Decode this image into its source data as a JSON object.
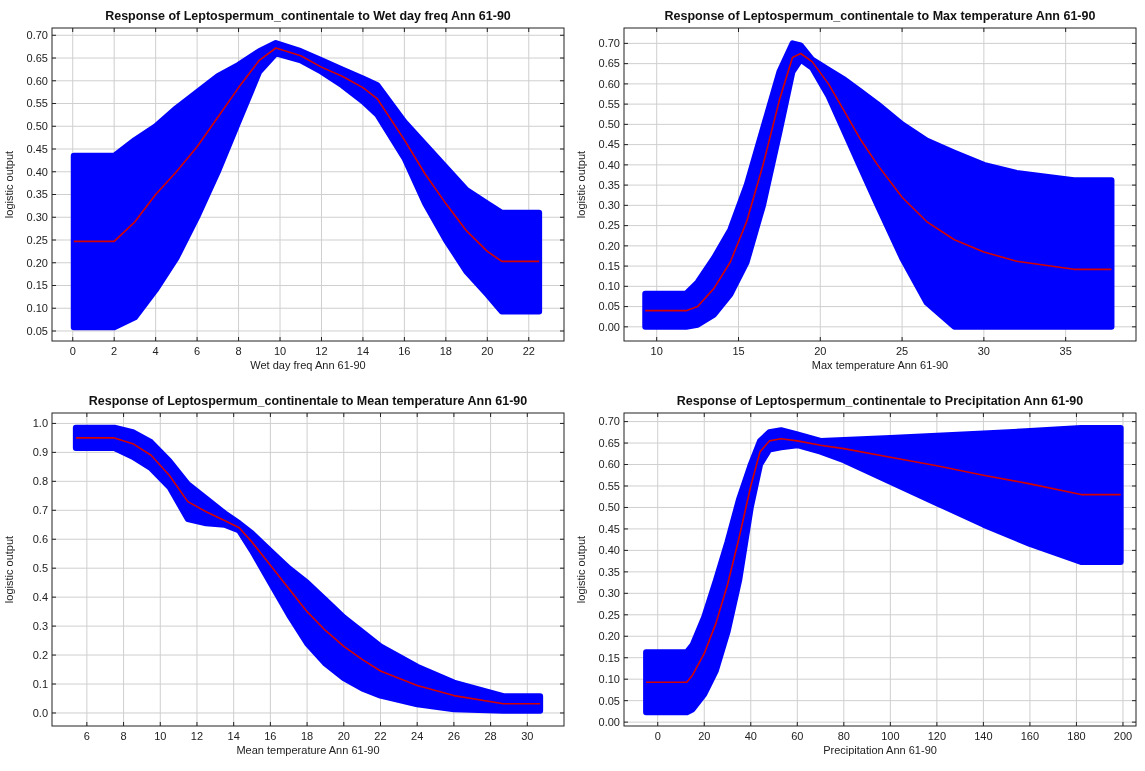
{
  "chart_data": [
    {
      "type": "line",
      "title": "Response of Leptospermum_continentale to Wet day freq Ann 61-90",
      "xlabel": "Wet day freq Ann 61-90",
      "ylabel": "logistic output",
      "grid": true,
      "xlim": [
        -1,
        23.7
      ],
      "ylim": [
        0.028,
        0.716
      ],
      "xticks": [
        0,
        2,
        4,
        6,
        8,
        10,
        12,
        14,
        16,
        18,
        20,
        22
      ],
      "yticks": [
        {
          "value": 0.05,
          "label": "0.05"
        },
        {
          "value": 0.1,
          "label": "0.10"
        },
        {
          "value": 0.15,
          "label": "0.15"
        },
        {
          "value": 0.2,
          "label": "0.20"
        },
        {
          "value": 0.25,
          "label": "0.25"
        },
        {
          "value": 0.3,
          "label": "0.30"
        },
        {
          "value": 0.35,
          "label": "0.35"
        },
        {
          "value": 0.4,
          "label": "0.40"
        },
        {
          "value": 0.45,
          "label": "0.45"
        },
        {
          "value": 0.5,
          "label": "0.50"
        },
        {
          "value": 0.55,
          "label": "0.55"
        },
        {
          "value": 0.6,
          "label": "0.60"
        },
        {
          "value": 0.65,
          "label": "0.65"
        },
        {
          "value": 0.7,
          "label": "0.70"
        }
      ],
      "x": [
        0.05,
        2,
        3,
        4,
        5,
        6,
        7,
        8,
        9,
        9.8,
        11,
        12,
        13,
        14,
        14.7,
        16,
        17,
        18,
        19,
        20,
        20.7,
        22.5
      ],
      "series": [
        {
          "color": "#d40000",
          "values": [
            0.247,
            0.247,
            0.29,
            0.35,
            0.4,
            0.455,
            0.52,
            0.585,
            0.645,
            0.672,
            0.655,
            0.63,
            0.61,
            0.585,
            0.56,
            0.47,
            0.395,
            0.33,
            0.27,
            0.225,
            0.203,
            0.203
          ],
          "lower": [
            0.058,
            0.058,
            0.08,
            0.14,
            0.21,
            0.3,
            0.4,
            0.51,
            0.62,
            0.66,
            0.645,
            0.62,
            0.59,
            0.555,
            0.525,
            0.43,
            0.33,
            0.25,
            0.18,
            0.13,
            0.093,
            0.093
          ],
          "upper": [
            0.435,
            0.435,
            0.47,
            0.5,
            0.54,
            0.575,
            0.61,
            0.635,
            0.665,
            0.683,
            0.665,
            0.645,
            0.625,
            0.605,
            0.59,
            0.51,
            0.46,
            0.41,
            0.36,
            0.33,
            0.31,
            0.31
          ]
        }
      ]
    },
    {
      "type": "line",
      "title": "Response of Leptospermum_continentale to Max temperature Ann 61-90",
      "xlabel": "Max temperature Ann 61-90",
      "ylabel": "logistic output",
      "grid": true,
      "xlim": [
        8,
        39.3
      ],
      "ylim": [
        -0.035,
        0.738
      ],
      "xticks": [
        10,
        15,
        20,
        25,
        30,
        35
      ],
      "yticks": [
        {
          "value": 0,
          "label": "0.00"
        },
        {
          "value": 0.05,
          "label": "0.05"
        },
        {
          "value": 0.1,
          "label": "0.10"
        },
        {
          "value": 0.15,
          "label": "0.15"
        },
        {
          "value": 0.2,
          "label": "0.20"
        },
        {
          "value": 0.25,
          "label": "0.25"
        },
        {
          "value": 0.3,
          "label": "0.30"
        },
        {
          "value": 0.35,
          "label": "0.35"
        },
        {
          "value": 0.4,
          "label": "0.40"
        },
        {
          "value": 0.45,
          "label": "0.45"
        },
        {
          "value": 0.5,
          "label": "0.50"
        },
        {
          "value": 0.55,
          "label": "0.55"
        },
        {
          "value": 0.6,
          "label": "0.60"
        },
        {
          "value": 0.65,
          "label": "0.65"
        },
        {
          "value": 0.7,
          "label": "0.70"
        }
      ],
      "x": [
        9.3,
        11.8,
        12.5,
        13.5,
        14.5,
        15.5,
        16.5,
        17.5,
        18.3,
        18.8,
        19.5,
        20.5,
        21.5,
        22.5,
        23.5,
        25,
        26.5,
        28.2,
        30,
        32,
        35.5,
        37.8
      ],
      "series": [
        {
          "color": "#d40000",
          "values": [
            0.04,
            0.04,
            0.05,
            0.095,
            0.16,
            0.26,
            0.4,
            0.56,
            0.665,
            0.675,
            0.655,
            0.6,
            0.53,
            0.46,
            0.4,
            0.32,
            0.26,
            0.215,
            0.185,
            0.162,
            0.142,
            0.142
          ],
          "lower": [
            0,
            0,
            0.005,
            0.03,
            0.08,
            0.16,
            0.3,
            0.48,
            0.63,
            0.66,
            0.64,
            0.57,
            0.48,
            0.39,
            0.3,
            0.17,
            0.06,
            0,
            0,
            0,
            0,
            0
          ],
          "upper": [
            0.082,
            0.082,
            0.11,
            0.17,
            0.24,
            0.35,
            0.49,
            0.63,
            0.7,
            0.695,
            0.66,
            0.635,
            0.61,
            0.58,
            0.55,
            0.5,
            0.46,
            0.43,
            0.4,
            0.38,
            0.362,
            0.362
          ]
        }
      ]
    },
    {
      "type": "line",
      "title": "Response of Leptospermum_continentale to Mean temperature Ann 61-90",
      "xlabel": "Mean temperature Ann 61-90",
      "ylabel": "logistic output",
      "grid": true,
      "xlim": [
        4.1,
        32
      ],
      "ylim": [
        -0.045,
        1.036
      ],
      "xticks": [
        6,
        8,
        10,
        12,
        14,
        16,
        18,
        20,
        22,
        24,
        26,
        28,
        30
      ],
      "yticks": [
        {
          "value": 0,
          "label": "0.0"
        },
        0.1,
        0.2,
        0.3,
        0.4,
        0.5,
        0.6,
        0.7,
        0.8,
        0.9,
        {
          "value": 1,
          "label": "1.0"
        }
      ],
      "x": [
        5.4,
        7.5,
        8.5,
        9.5,
        10.5,
        11.5,
        12.5,
        13.5,
        14.3,
        15,
        16,
        17,
        18,
        19,
        20,
        21,
        22,
        24,
        26,
        28.7,
        30.7
      ],
      "series": [
        {
          "color": "#d40000",
          "values": [
            0.95,
            0.95,
            0.93,
            0.89,
            0.82,
            0.73,
            0.695,
            0.665,
            0.64,
            0.59,
            0.51,
            0.43,
            0.35,
            0.285,
            0.23,
            0.185,
            0.145,
            0.095,
            0.06,
            0.032,
            0.032
          ],
          "lower": [
            0.915,
            0.915,
            0.885,
            0.845,
            0.78,
            0.67,
            0.655,
            0.65,
            0.63,
            0.56,
            0.45,
            0.34,
            0.24,
            0.17,
            0.12,
            0.085,
            0.06,
            0.03,
            0.013,
            0.008,
            0.008
          ],
          "upper": [
            0.985,
            0.985,
            0.97,
            0.935,
            0.87,
            0.79,
            0.74,
            0.69,
            0.655,
            0.62,
            0.56,
            0.5,
            0.45,
            0.39,
            0.33,
            0.28,
            0.23,
            0.16,
            0.105,
            0.058,
            0.058
          ]
        }
      ]
    },
    {
      "type": "line",
      "title": "Response of Leptospermum_continentale to Precipitation Ann 61-90",
      "xlabel": "Precipitation Ann 61-90",
      "ylabel": "logistic output",
      "grid": true,
      "xlim": [
        -14.5,
        205.6
      ],
      "ylim": [
        -0.009,
        0.72
      ],
      "xticks": [
        0,
        20,
        40,
        60,
        80,
        100,
        120,
        140,
        160,
        180,
        200
      ],
      "yticks": [
        {
          "value": 0,
          "label": "0.00"
        },
        {
          "value": 0.05,
          "label": "0.05"
        },
        {
          "value": 0.1,
          "label": "0.10"
        },
        {
          "value": 0.15,
          "label": "0.15"
        },
        {
          "value": 0.2,
          "label": "0.20"
        },
        {
          "value": 0.25,
          "label": "0.25"
        },
        {
          "value": 0.3,
          "label": "0.30"
        },
        {
          "value": 0.35,
          "label": "0.35"
        },
        {
          "value": 0.4,
          "label": "0.40"
        },
        {
          "value": 0.45,
          "label": "0.45"
        },
        {
          "value": 0.5,
          "label": "0.50"
        },
        {
          "value": 0.55,
          "label": "0.55"
        },
        {
          "value": 0.6,
          "label": "0.60"
        },
        {
          "value": 0.65,
          "label": "0.65"
        },
        {
          "value": 0.7,
          "label": "0.70"
        }
      ],
      "x": [
        -5,
        12.5,
        15,
        20,
        25,
        30,
        35,
        40,
        44,
        48,
        53,
        60,
        70,
        80,
        100,
        120,
        140,
        160,
        182,
        199
      ],
      "series": [
        {
          "color": "#d40000",
          "values": [
            0.093,
            0.093,
            0.11,
            0.16,
            0.23,
            0.32,
            0.43,
            0.55,
            0.63,
            0.655,
            0.66,
            0.655,
            0.645,
            0.637,
            0.617,
            0.597,
            0.575,
            0.555,
            0.53,
            0.53
          ],
          "lower": [
            0.023,
            0.023,
            0.03,
            0.065,
            0.12,
            0.21,
            0.33,
            0.5,
            0.6,
            0.635,
            0.64,
            0.645,
            0.63,
            0.61,
            0.56,
            0.51,
            0.46,
            0.415,
            0.373,
            0.373
          ],
          "upper": [
            0.163,
            0.163,
            0.18,
            0.245,
            0.33,
            0.42,
            0.52,
            0.6,
            0.655,
            0.675,
            0.68,
            0.67,
            0.655,
            0.657,
            0.662,
            0.667,
            0.672,
            0.678,
            0.685,
            0.685
          ]
        }
      ]
    }
  ]
}
